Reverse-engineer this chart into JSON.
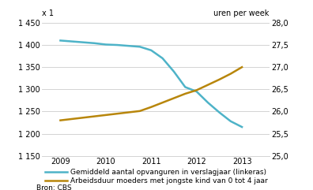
{
  "years": [
    2009,
    2009.25,
    2009.5,
    2009.75,
    2010,
    2010.25,
    2010.5,
    2010.75,
    2011,
    2011.25,
    2011.5,
    2011.75,
    2012,
    2012.25,
    2012.5,
    2012.75,
    2013
  ],
  "blue_line": [
    1410,
    1408,
    1406,
    1404,
    1401,
    1400,
    1398,
    1396,
    1388,
    1370,
    1340,
    1305,
    1295,
    1270,
    1248,
    1228,
    1215
  ],
  "brown_line_right": [
    25.8,
    25.83,
    25.86,
    25.89,
    25.92,
    25.95,
    25.98,
    26.01,
    26.1,
    26.2,
    26.3,
    26.4,
    26.48,
    26.6,
    26.72,
    26.85,
    27.0
  ],
  "blue_color": "#4eb3c8",
  "brown_color": "#b8860b",
  "left_ylim": [
    1150,
    1450
  ],
  "right_ylim": [
    25.0,
    28.0
  ],
  "left_yticks": [
    1150,
    1200,
    1250,
    1300,
    1350,
    1400,
    1450
  ],
  "right_yticks": [
    25.0,
    25.5,
    26.0,
    26.5,
    27.0,
    27.5,
    28.0
  ],
  "xticks": [
    2009,
    2010,
    2011,
    2012,
    2013
  ],
  "xlim": [
    2008.6,
    2013.6
  ],
  "left_label": "x 1",
  "right_label": "uren per week",
  "legend1": "Gemiddeld aantal opvanguren in verslagjaar (linkeras)",
  "legend2": "Arbeidsduur moeders met jongste kind van 0 tot 4 jaar",
  "source": "Bron: CBS",
  "bg_color": "#ffffff",
  "grid_color": "#cccccc",
  "line_width": 1.8
}
